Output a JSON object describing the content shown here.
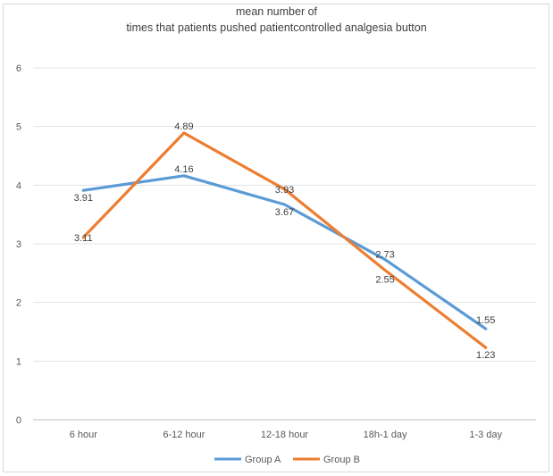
{
  "chart_data": {
    "type": "line",
    "title_line1": "mean number of",
    "title_line2": "times that patients pushed patientcontrolled analgesia button",
    "categories": [
      "6 hour",
      "6-12 hour",
      "12-18 hour",
      "18h-1 day",
      "1-3 day"
    ],
    "ylim": [
      0,
      6
    ],
    "yticks": [
      0,
      1,
      2,
      3,
      4,
      5,
      6
    ],
    "grid": true,
    "legend_position": "bottom",
    "series": [
      {
        "name": "Group A",
        "color": "#5b9bd5",
        "values": [
          3.91,
          4.16,
          3.67,
          2.73,
          1.55
        ],
        "labels": [
          "3.91",
          "4.16",
          "3.67",
          "2.73",
          "1.55"
        ]
      },
      {
        "name": "Group B",
        "color": "#ed7d31",
        "values": [
          3.11,
          4.89,
          3.93,
          2.55,
          1.23
        ],
        "labels": [
          "3.11",
          "4.89",
          "3.93",
          "2.55",
          "1.23"
        ]
      }
    ]
  }
}
